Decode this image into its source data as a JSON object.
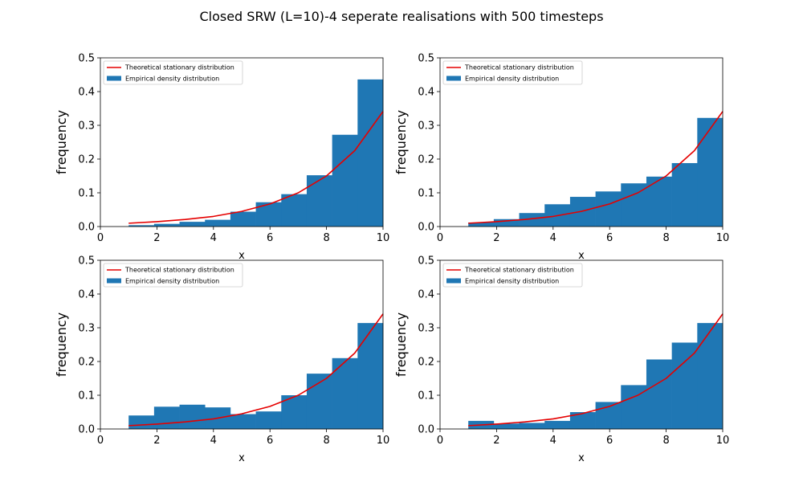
{
  "figure": {
    "title": "Closed SRW (L=10)-4 seperate realisations with 500 timesteps"
  },
  "colors": {
    "bar": "#1f77b4",
    "line": "#e50000",
    "axes": "#000000",
    "legend_border": "#cccccc"
  },
  "chart_data": [
    {
      "type": "bar",
      "xlabel": "x",
      "ylabel": "frequency",
      "xlim": [
        0,
        10
      ],
      "ylim": [
        0,
        0.5
      ],
      "xticks": [
        "0",
        "2",
        "4",
        "6",
        "8",
        "10"
      ],
      "yticks": [
        "0.0",
        "0.1",
        "0.2",
        "0.3",
        "0.4",
        "0.5"
      ],
      "legend": {
        "position": "upper left",
        "entries": [
          "Theoretical stationary distribution",
          "Empirical density distribution"
        ]
      },
      "bin_edges": [
        1,
        1.9,
        2.8,
        3.7,
        4.6,
        5.5,
        6.4,
        7.3,
        8.2,
        9.1,
        10
      ],
      "values": [
        0.004,
        0.008,
        0.014,
        0.02,
        0.044,
        0.072,
        0.096,
        0.152,
        0.272,
        0.436
      ],
      "theoretical": {
        "x": [
          1,
          2,
          3,
          4,
          5,
          6,
          7,
          8,
          9,
          10
        ],
        "y": [
          0.0098,
          0.0145,
          0.021,
          0.03,
          0.045,
          0.067,
          0.1,
          0.15,
          0.225,
          0.341
        ]
      }
    },
    {
      "type": "bar",
      "xlabel": "x",
      "ylabel": "frequency",
      "xlim": [
        0,
        10
      ],
      "ylim": [
        0,
        0.5
      ],
      "xticks": [
        "0",
        "2",
        "4",
        "6",
        "8",
        "10"
      ],
      "yticks": [
        "0.0",
        "0.1",
        "0.2",
        "0.3",
        "0.4",
        "0.5"
      ],
      "legend": {
        "position": "upper left",
        "entries": [
          "Theoretical stationary distribution",
          "Empirical density distribution"
        ]
      },
      "bin_edges": [
        1,
        1.9,
        2.8,
        3.7,
        4.6,
        5.5,
        6.4,
        7.3,
        8.2,
        9.1,
        10
      ],
      "values": [
        0.012,
        0.022,
        0.04,
        0.066,
        0.088,
        0.104,
        0.128,
        0.148,
        0.188,
        0.322
      ],
      "theoretical": {
        "x": [
          1,
          2,
          3,
          4,
          5,
          6,
          7,
          8,
          9,
          10
        ],
        "y": [
          0.0098,
          0.0145,
          0.021,
          0.03,
          0.045,
          0.067,
          0.1,
          0.15,
          0.225,
          0.341
        ]
      }
    },
    {
      "type": "bar",
      "xlabel": "x",
      "ylabel": "frequency",
      "xlim": [
        0,
        10
      ],
      "ylim": [
        0,
        0.5
      ],
      "xticks": [
        "0",
        "2",
        "4",
        "6",
        "8",
        "10"
      ],
      "yticks": [
        "0.0",
        "0.1",
        "0.2",
        "0.3",
        "0.4",
        "0.5"
      ],
      "legend": {
        "position": "upper left",
        "entries": [
          "Theoretical stationary distribution",
          "Empirical density distribution"
        ]
      },
      "bin_edges": [
        1,
        1.9,
        2.8,
        3.7,
        4.6,
        5.5,
        6.4,
        7.3,
        8.2,
        9.1,
        10
      ],
      "values": [
        0.04,
        0.066,
        0.072,
        0.064,
        0.044,
        0.052,
        0.1,
        0.164,
        0.21,
        0.314
      ],
      "theoretical": {
        "x": [
          1,
          2,
          3,
          4,
          5,
          6,
          7,
          8,
          9,
          10
        ],
        "y": [
          0.0098,
          0.0145,
          0.021,
          0.03,
          0.045,
          0.067,
          0.1,
          0.15,
          0.225,
          0.341
        ]
      }
    },
    {
      "type": "bar",
      "xlabel": "x",
      "ylabel": "frequency",
      "xlim": [
        0,
        10
      ],
      "ylim": [
        0,
        0.5
      ],
      "xticks": [
        "0",
        "2",
        "4",
        "6",
        "8",
        "10"
      ],
      "yticks": [
        "0.0",
        "0.1",
        "0.2",
        "0.3",
        "0.4",
        "0.5"
      ],
      "legend": {
        "position": "upper left",
        "entries": [
          "Theoretical stationary distribution",
          "Empirical density distribution"
        ]
      },
      "bin_edges": [
        1,
        1.9,
        2.8,
        3.7,
        4.6,
        5.5,
        6.4,
        7.3,
        8.2,
        9.1,
        10
      ],
      "values": [
        0.024,
        0.016,
        0.018,
        0.024,
        0.05,
        0.08,
        0.13,
        0.206,
        0.256,
        0.314
      ],
      "theoretical": {
        "x": [
          1,
          2,
          3,
          4,
          5,
          6,
          7,
          8,
          9,
          10
        ],
        "y": [
          0.0098,
          0.0145,
          0.021,
          0.03,
          0.045,
          0.067,
          0.1,
          0.15,
          0.225,
          0.341
        ]
      }
    }
  ]
}
